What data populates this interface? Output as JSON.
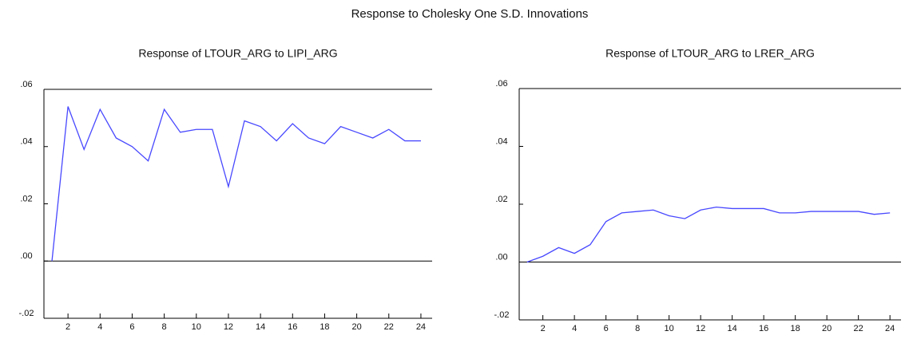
{
  "title": "Response to Cholesky One S.D. Innovations",
  "chart_data": [
    {
      "type": "line",
      "title": "Response of LTOUR_ARG to LIPI_ARG",
      "x": [
        1,
        2,
        3,
        4,
        5,
        6,
        7,
        8,
        9,
        10,
        11,
        12,
        13,
        14,
        15,
        16,
        17,
        18,
        19,
        20,
        21,
        22,
        23,
        24
      ],
      "series": [
        {
          "name": "LTOUR_ARG",
          "color": "#4848ff",
          "values": [
            0.0,
            0.054,
            0.039,
            0.053,
            0.043,
            0.04,
            0.035,
            0.053,
            0.045,
            0.046,
            0.046,
            0.026,
            0.049,
            0.047,
            0.042,
            0.048,
            0.043,
            0.041,
            0.047,
            0.045,
            0.043,
            0.046,
            0.042,
            0.042
          ]
        }
      ],
      "xlim": [
        0.5,
        24.7
      ],
      "xticks": [
        2,
        4,
        6,
        8,
        10,
        12,
        14,
        16,
        18,
        20,
        22,
        24
      ],
      "ylim": [
        -0.02,
        0.06
      ],
      "yticks": [
        {
          "value": -0.02,
          "label": "-.02"
        },
        {
          "value": 0,
          "label": ".00"
        },
        {
          "value": 0.02,
          "label": ".02"
        },
        {
          "value": 0.04,
          "label": ".04"
        },
        {
          "value": 0.06,
          "label": ".06"
        }
      ]
    },
    {
      "type": "line",
      "title": "Response of LTOUR_ARG to LRER_ARG",
      "x": [
        1,
        2,
        3,
        4,
        5,
        6,
        7,
        8,
        9,
        10,
        11,
        12,
        13,
        14,
        15,
        16,
        17,
        18,
        19,
        20,
        21,
        22,
        23,
        24
      ],
      "series": [
        {
          "name": "LTOUR_ARG",
          "color": "#4848ff",
          "values": [
            0.0,
            0.002,
            0.005,
            0.003,
            0.006,
            0.014,
            0.017,
            0.0175,
            0.018,
            0.016,
            0.015,
            0.018,
            0.019,
            0.0185,
            0.0185,
            0.0185,
            0.017,
            0.017,
            0.0175,
            0.0175,
            0.0175,
            0.0175,
            0.0165,
            0.017
          ]
        }
      ],
      "xlim": [
        0.5,
        24.7
      ],
      "xticks": [
        2,
        4,
        6,
        8,
        10,
        12,
        14,
        16,
        18,
        20,
        22,
        24
      ],
      "ylim": [
        -0.02,
        0.06
      ],
      "yticks": [
        {
          "value": -0.02,
          "label": "-.02"
        },
        {
          "value": 0,
          "label": ".00"
        },
        {
          "value": 0.02,
          "label": ".02"
        },
        {
          "value": 0.04,
          "label": ".04"
        },
        {
          "value": 0.06,
          "label": ".06"
        }
      ]
    }
  ]
}
